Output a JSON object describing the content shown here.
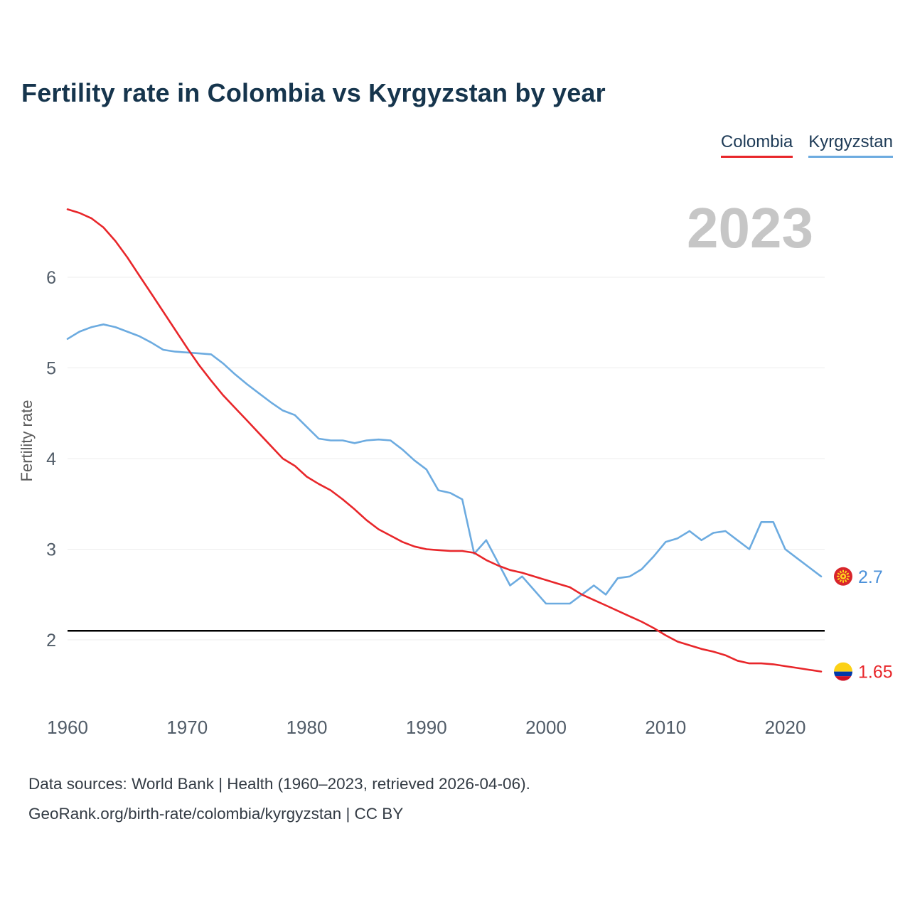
{
  "header": {
    "title": "Fertility rate in Colombia vs Kyrgyzstan by year"
  },
  "legend": [
    {
      "label": "Colombia",
      "color": "#e8262a"
    },
    {
      "label": "Kyrgyzstan",
      "color": "#6cabe0"
    }
  ],
  "watermark": "2023",
  "chart_data": {
    "type": "line",
    "title": "Fertility rate in Colombia vs Kyrgyzstan by year",
    "xlabel": "",
    "ylabel": "Fertility rate",
    "grid": true,
    "legend_position": "top-right",
    "ylim": [
      1.4,
      6.9
    ],
    "y_ticks": [
      2,
      3,
      4,
      5,
      6
    ],
    "x_ticks": [
      1960,
      1970,
      1980,
      1990,
      2000,
      2010,
      2020
    ],
    "x": [
      1960,
      1961,
      1962,
      1963,
      1964,
      1965,
      1966,
      1967,
      1968,
      1969,
      1970,
      1971,
      1972,
      1973,
      1974,
      1975,
      1976,
      1977,
      1978,
      1979,
      1980,
      1981,
      1982,
      1983,
      1984,
      1985,
      1986,
      1987,
      1988,
      1989,
      1990,
      1991,
      1992,
      1993,
      1994,
      1995,
      1996,
      1997,
      1998,
      1999,
      2000,
      2001,
      2002,
      2003,
      2004,
      2005,
      2006,
      2007,
      2008,
      2009,
      2010,
      2011,
      2012,
      2013,
      2014,
      2015,
      2016,
      2017,
      2018,
      2019,
      2020,
      2021,
      2022,
      2023
    ],
    "series": [
      {
        "name": "Colombia",
        "color": "#e8262a",
        "values": [
          6.75,
          6.71,
          6.65,
          6.55,
          6.4,
          6.22,
          6.02,
          5.82,
          5.62,
          5.42,
          5.22,
          5.03,
          4.86,
          4.7,
          4.56,
          4.42,
          4.28,
          4.14,
          4.0,
          3.92,
          3.8,
          3.72,
          3.65,
          3.55,
          3.44,
          3.32,
          3.22,
          3.15,
          3.08,
          3.03,
          3.0,
          2.99,
          2.98,
          2.98,
          2.96,
          2.88,
          2.82,
          2.77,
          2.74,
          2.7,
          2.66,
          2.62,
          2.58,
          2.5,
          2.44,
          2.38,
          2.32,
          2.26,
          2.2,
          2.13,
          2.05,
          1.98,
          1.94,
          1.9,
          1.87,
          1.83,
          1.77,
          1.74,
          1.74,
          1.73,
          1.71,
          1.69,
          1.67,
          1.65
        ]
      },
      {
        "name": "Kyrgyzstan",
        "color": "#6cabe0",
        "values": [
          5.32,
          5.4,
          5.45,
          5.48,
          5.45,
          5.4,
          5.35,
          5.28,
          5.2,
          5.18,
          5.17,
          5.16,
          5.15,
          5.05,
          4.93,
          4.82,
          4.72,
          4.62,
          4.53,
          4.48,
          4.35,
          4.22,
          4.2,
          4.2,
          4.17,
          4.2,
          4.21,
          4.2,
          4.1,
          3.98,
          3.88,
          3.65,
          3.62,
          3.55,
          2.95,
          3.1,
          2.85,
          2.6,
          2.7,
          2.55,
          2.4,
          2.4,
          2.4,
          2.5,
          2.6,
          2.5,
          2.68,
          2.7,
          2.78,
          2.92,
          3.08,
          3.12,
          3.2,
          3.1,
          3.18,
          3.2,
          3.1,
          3.0,
          3.3,
          3.3,
          3.0,
          2.9,
          2.8,
          2.7
        ]
      }
    ],
    "reference_line": {
      "value": 2.1,
      "color": "#000000"
    },
    "end_labels": [
      {
        "series": "Kyrgyzstan",
        "flag": "kyrgyzstan",
        "value": 2.7,
        "text": "2.7",
        "color": "#4a90d9"
      },
      {
        "series": "Colombia",
        "flag": "colombia",
        "value": 1.65,
        "text": "1.65",
        "color": "#e8262a"
      }
    ]
  },
  "footer": {
    "line1": "Data sources: World Bank | Health (1960–2023, retrieved 2026-04-06).",
    "line2": "GeoRank.org/birth-rate/colombia/kyrgyzstan | CC BY"
  }
}
